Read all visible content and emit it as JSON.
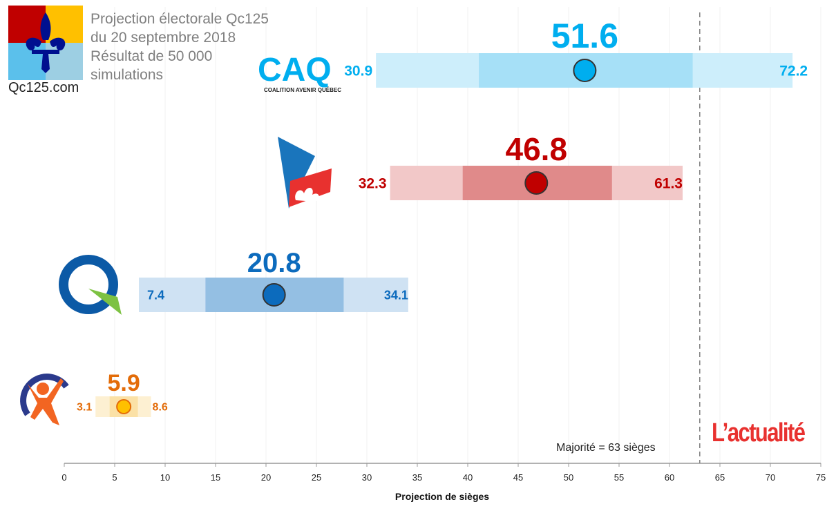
{
  "header": {
    "lines": [
      "Projection électorale Qc125",
      "du 20 septembre 2018",
      "Résultat de 50 000",
      "simulations"
    ],
    "site": "Qc125.com"
  },
  "brand": "L’actualité",
  "majority_label": "Majorité = 63 sièges",
  "party_logos": {
    "caq_text": "CAQ",
    "caq_subtitle": "COALITION AVENIR QUÉBEC"
  },
  "chart_data": {
    "type": "range",
    "title": "Projection électorale Qc125 du 20 septembre 2018",
    "xlabel": "Projection de sièges",
    "xlim": [
      0,
      75
    ],
    "xticks": [
      0,
      5,
      10,
      15,
      20,
      25,
      30,
      35,
      40,
      45,
      50,
      55,
      60,
      65,
      70,
      75
    ],
    "grid": true,
    "majority_line": 63,
    "series": [
      {
        "name": "CAQ",
        "mean": 51.6,
        "low": 30.9,
        "high": 72.2,
        "inner_low": 41.1,
        "inner_high": 62.3,
        "color": "#00aeef",
        "outer_color": "#cdeefb",
        "inner_color": "#a6e0f7",
        "label_color": "#00aeef",
        "dot_color": "#00aeef"
      },
      {
        "name": "PLQ",
        "mean": 46.8,
        "low": 32.3,
        "high": 61.3,
        "inner_low": 39.5,
        "inner_high": 54.3,
        "color": "#c00000",
        "outer_color": "#f2c8c8",
        "inner_color": "#e08a8a",
        "label_color": "#c00000",
        "dot_color": "#c00000"
      },
      {
        "name": "PQ",
        "mean": 20.8,
        "low": 7.4,
        "high": 34.1,
        "inner_low": 14.0,
        "inner_high": 27.7,
        "color": "#0c6bbd",
        "outer_color": "#cfe2f3",
        "inner_color": "#94bfe3",
        "label_color": "#0c6bbd",
        "dot_color": "#0c6bbd"
      },
      {
        "name": "QS",
        "mean": 5.9,
        "low": 3.1,
        "high": 8.6,
        "inner_low": 4.5,
        "inner_high": 7.3,
        "color": "#e36c09",
        "outer_color": "#fdf0d2",
        "inner_color": "#fbe1a6",
        "label_color": "#e36c09",
        "dot_color": "#ffc000"
      }
    ]
  }
}
